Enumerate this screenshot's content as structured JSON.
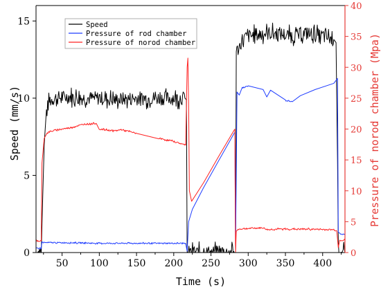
{
  "chart_data": {
    "type": "line",
    "xlabel": "Time (s)",
    "ylabel_left": "Speed (mm/s)",
    "ylabel_right": "Pressure of norod chamber (Mpa)",
    "xlim": [
      15,
      430
    ],
    "ylim_left": [
      0,
      16
    ],
    "ylim_right": [
      0,
      40
    ],
    "x_ticks": [
      50,
      100,
      150,
      200,
      250,
      300,
      350,
      400
    ],
    "y_ticks_left": [
      0,
      5,
      10,
      15
    ],
    "y_ticks_right": [
      0,
      5,
      10,
      15,
      20,
      25,
      30,
      35,
      40
    ],
    "grid": false,
    "legend_position": "top-left",
    "colors": {
      "speed": "#000000",
      "rod": "#1e3cff",
      "norod": "#ff2020",
      "right_axis": "#e53935"
    },
    "series": [
      {
        "name": "Speed",
        "color_key": "speed",
        "axis": "left",
        "noise": 0.45,
        "points": [
          [
            15,
            0
          ],
          [
            22,
            0
          ],
          [
            24,
            3.6
          ],
          [
            26,
            7.0
          ],
          [
            29,
            9.2
          ],
          [
            33,
            9.8
          ],
          [
            40,
            10.0
          ],
          [
            60,
            10.1
          ],
          [
            80,
            10.0
          ],
          [
            100,
            10.0
          ],
          [
            120,
            9.9
          ],
          [
            150,
            10.0
          ],
          [
            180,
            10.0
          ],
          [
            200,
            10.0
          ],
          [
            215,
            10.0
          ],
          [
            217,
            9.9
          ],
          [
            218,
            0
          ],
          [
            283,
            0
          ],
          [
            284,
            13.0
          ],
          [
            288,
            13.3
          ],
          [
            292,
            13.8
          ],
          [
            300,
            14.0
          ],
          [
            320,
            14.2
          ],
          [
            340,
            14.2
          ],
          [
            360,
            14.0
          ],
          [
            380,
            14.2
          ],
          [
            400,
            14.0
          ],
          [
            415,
            13.8
          ],
          [
            418,
            13.6
          ],
          [
            420,
            6.0
          ],
          [
            421,
            0
          ],
          [
            430,
            0
          ]
        ]
      },
      {
        "name": "Pressure of rod chamber",
        "color_key": "rod",
        "axis": "right",
        "noise": 0.1,
        "points": [
          [
            15,
            0.7
          ],
          [
            22,
            0.7
          ],
          [
            23,
            1.7
          ],
          [
            27,
            1.6
          ],
          [
            60,
            1.6
          ],
          [
            100,
            1.5
          ],
          [
            150,
            1.5
          ],
          [
            190,
            1.5
          ],
          [
            216,
            1.5
          ],
          [
            218,
            0.2
          ],
          [
            220,
            5.0
          ],
          [
            225,
            7.0
          ],
          [
            240,
            10.5
          ],
          [
            260,
            14.8
          ],
          [
            282,
            19.5
          ],
          [
            283,
            0.3
          ],
          [
            285,
            26.0
          ],
          [
            288,
            25.5
          ],
          [
            292,
            26.6
          ],
          [
            300,
            27.0
          ],
          [
            320,
            26.4
          ],
          [
            325,
            25.2
          ],
          [
            330,
            26.3
          ],
          [
            350,
            24.6
          ],
          [
            360,
            24.5
          ],
          [
            370,
            25.4
          ],
          [
            390,
            26.4
          ],
          [
            415,
            27.4
          ],
          [
            420,
            28.2
          ],
          [
            421,
            3.2
          ],
          [
            425,
            3.0
          ],
          [
            430,
            2.9
          ]
        ]
      },
      {
        "name": "Pressure of norod chamber",
        "color_key": "norod",
        "axis": "right",
        "noise": 0.12,
        "points": [
          [
            15,
            1.9
          ],
          [
            22,
            1.9
          ],
          [
            23,
            14.5
          ],
          [
            26,
            18.5
          ],
          [
            30,
            19.4
          ],
          [
            40,
            19.8
          ],
          [
            60,
            20.2
          ],
          [
            80,
            20.8
          ],
          [
            96,
            20.9
          ],
          [
            100,
            20.0
          ],
          [
            120,
            19.7
          ],
          [
            130,
            19.9
          ],
          [
            150,
            19.3
          ],
          [
            180,
            18.5
          ],
          [
            200,
            18.0
          ],
          [
            216,
            17.4
          ],
          [
            218,
            30.0
          ],
          [
            219,
            31.5
          ],
          [
            220,
            24.0
          ],
          [
            221,
            10.0
          ],
          [
            224,
            8.3
          ],
          [
            240,
            11.3
          ],
          [
            260,
            15.5
          ],
          [
            282,
            20.0
          ],
          [
            283,
            0
          ],
          [
            284,
            3.6
          ],
          [
            288,
            3.8
          ],
          [
            300,
            3.9
          ],
          [
            320,
            4.0
          ],
          [
            326,
            3.7
          ],
          [
            340,
            3.8
          ],
          [
            380,
            3.8
          ],
          [
            415,
            3.7
          ],
          [
            419,
            3.5
          ],
          [
            421,
            0.8
          ],
          [
            423,
            2.0
          ],
          [
            430,
            2.0
          ]
        ]
      }
    ]
  }
}
